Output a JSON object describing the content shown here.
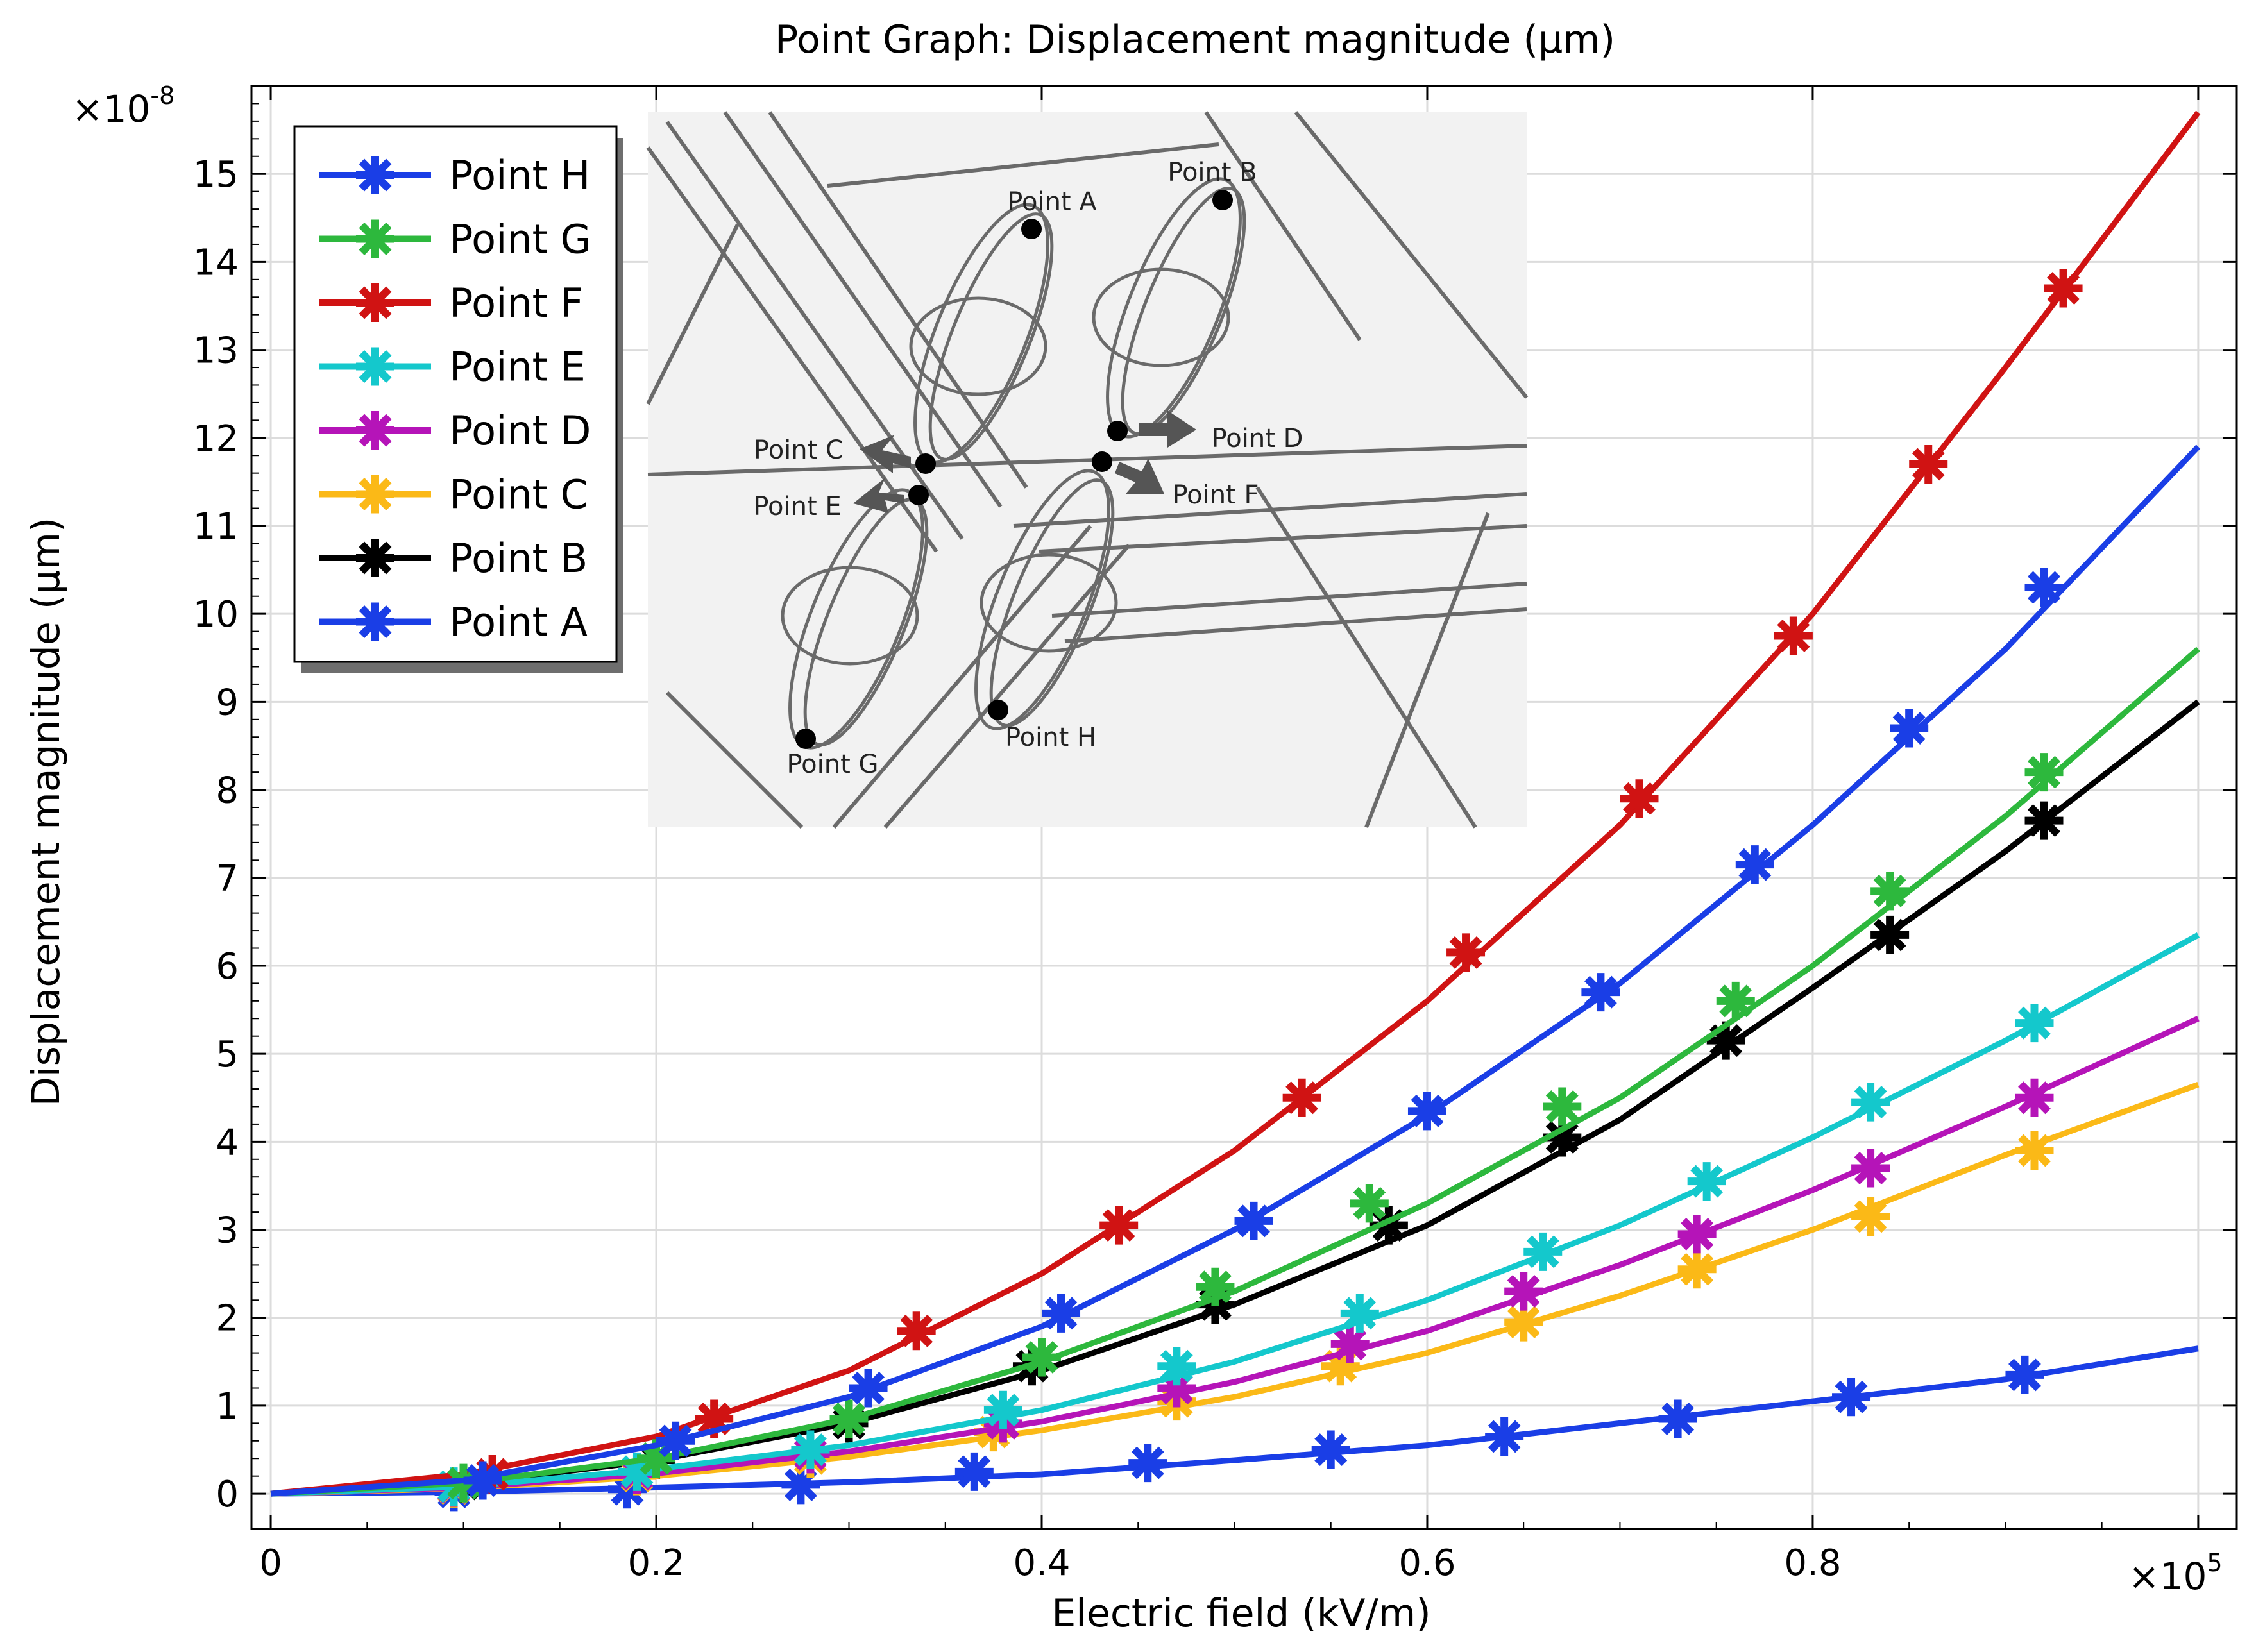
{
  "chart_data": {
    "type": "line",
    "title": "Point Graph: Displacement magnitude (µm)",
    "xlabel": "Electric field (kV/m)",
    "ylabel": "Displacement magnitude (µm)",
    "x_multiplier": "×10",
    "x_exponent": "5",
    "y_multiplier": "×10",
    "y_exponent": "-8",
    "xlim": [
      -0.01,
      1.02
    ],
    "ylim": [
      -0.4,
      16.0
    ],
    "xticks": [
      0,
      0.2,
      0.4,
      0.6,
      0.8
    ],
    "xtick_labels": [
      "0",
      "0.2",
      "0.4",
      "0.6",
      "0.8"
    ],
    "yticks": [
      0,
      1,
      2,
      3,
      4,
      5,
      6,
      7,
      8,
      9,
      10,
      11,
      12,
      13,
      14,
      15
    ],
    "ytick_labels": [
      "0",
      "1",
      "2",
      "3",
      "4",
      "5",
      "6",
      "7",
      "8",
      "9",
      "10",
      "11",
      "12",
      "13",
      "14",
      "15"
    ],
    "grid": true,
    "legend_position": "top-left",
    "x": [
      0,
      0.1,
      0.2,
      0.3,
      0.4,
      0.5,
      0.6,
      0.7,
      0.8,
      0.9,
      1.0
    ],
    "series": [
      {
        "name": "Point H",
        "color": "#1a3ee6",
        "values": [
          0,
          0.15,
          0.55,
          1.1,
          1.9,
          3.0,
          4.3,
          5.8,
          7.6,
          9.6,
          11.9
        ],
        "markers": [
          [
            0.11,
            0.15
          ],
          [
            0.21,
            0.6
          ],
          [
            0.31,
            1.2
          ],
          [
            0.41,
            2.05
          ],
          [
            0.51,
            3.1
          ],
          [
            0.6,
            4.35
          ],
          [
            0.69,
            5.7
          ],
          [
            0.77,
            7.15
          ],
          [
            0.85,
            8.7
          ],
          [
            0.92,
            10.3
          ]
        ]
      },
      {
        "name": "Point G",
        "color": "#2db83d",
        "values": [
          0,
          0.12,
          0.4,
          0.85,
          1.5,
          2.3,
          3.3,
          4.5,
          6.0,
          7.7,
          9.6
        ],
        "markers": [
          [
            0.1,
            0.12
          ],
          [
            0.2,
            0.4
          ],
          [
            0.3,
            0.85
          ],
          [
            0.4,
            1.55
          ],
          [
            0.49,
            2.35
          ],
          [
            0.57,
            3.3
          ],
          [
            0.67,
            4.4
          ],
          [
            0.76,
            5.6
          ],
          [
            0.84,
            6.85
          ],
          [
            0.92,
            8.2
          ]
        ]
      },
      {
        "name": "Point F",
        "color": "#d01313",
        "values": [
          0,
          0.22,
          0.65,
          1.4,
          2.5,
          3.9,
          5.6,
          7.6,
          10.0,
          12.8,
          15.7
        ],
        "markers": [
          [
            0.115,
            0.22
          ],
          [
            0.23,
            0.85
          ],
          [
            0.335,
            1.85
          ],
          [
            0.44,
            3.05
          ],
          [
            0.535,
            4.5
          ],
          [
            0.62,
            6.15
          ],
          [
            0.71,
            7.9
          ],
          [
            0.79,
            9.75
          ],
          [
            0.86,
            11.7
          ],
          [
            0.93,
            13.7
          ]
        ]
      },
      {
        "name": "Point E",
        "color": "#14c8cc",
        "values": [
          0,
          0.08,
          0.28,
          0.55,
          0.95,
          1.5,
          2.2,
          3.05,
          4.05,
          5.15,
          6.35
        ],
        "markers": [
          [
            0.095,
            0.08
          ],
          [
            0.19,
            0.25
          ],
          [
            0.28,
            0.5
          ],
          [
            0.38,
            0.95
          ],
          [
            0.47,
            1.45
          ],
          [
            0.565,
            2.05
          ],
          [
            0.66,
            2.75
          ],
          [
            0.745,
            3.55
          ],
          [
            0.83,
            4.45
          ],
          [
            0.915,
            5.35
          ]
        ]
      },
      {
        "name": "Point D",
        "color": "#b514b8",
        "values": [
          0,
          0.07,
          0.23,
          0.48,
          0.82,
          1.27,
          1.85,
          2.6,
          3.45,
          4.4,
          5.4
        ],
        "markers": [
          [
            0.095,
            0.07
          ],
          [
            0.19,
            0.22
          ],
          [
            0.28,
            0.45
          ],
          [
            0.38,
            0.8
          ],
          [
            0.47,
            1.2
          ],
          [
            0.56,
            1.7
          ],
          [
            0.65,
            2.3
          ],
          [
            0.74,
            2.95
          ],
          [
            0.83,
            3.7
          ],
          [
            0.915,
            4.5
          ]
        ]
      },
      {
        "name": "Point C",
        "color": "#fbb917",
        "values": [
          0,
          0.06,
          0.2,
          0.42,
          0.72,
          1.1,
          1.6,
          2.25,
          3.0,
          3.85,
          4.65
        ],
        "markers": [
          [
            0.095,
            0.06
          ],
          [
            0.19,
            0.2
          ],
          [
            0.28,
            0.4
          ],
          [
            0.375,
            0.7
          ],
          [
            0.47,
            1.05
          ],
          [
            0.555,
            1.45
          ],
          [
            0.65,
            1.95
          ],
          [
            0.74,
            2.55
          ],
          [
            0.83,
            3.15
          ],
          [
            0.915,
            3.9
          ]
        ]
      },
      {
        "name": "Point B",
        "color": "#000000",
        "values": [
          0,
          0.11,
          0.38,
          0.8,
          1.4,
          2.15,
          3.05,
          4.25,
          5.75,
          7.3,
          9.0
        ],
        "markers": [
          [
            0.1,
            0.11
          ],
          [
            0.2,
            0.38
          ],
          [
            0.3,
            0.8
          ],
          [
            0.395,
            1.45
          ],
          [
            0.49,
            2.15
          ],
          [
            0.58,
            3.05
          ],
          [
            0.67,
            4.05
          ],
          [
            0.755,
            5.15
          ],
          [
            0.84,
            6.35
          ],
          [
            0.92,
            7.65
          ]
        ]
      },
      {
        "name": "Point A",
        "color": "#1a3ee6",
        "values": [
          0,
          0.02,
          0.07,
          0.13,
          0.22,
          0.38,
          0.55,
          0.8,
          1.05,
          1.3,
          1.65
        ],
        "markers": [
          [
            0.095,
            0.02
          ],
          [
            0.185,
            0.05
          ],
          [
            0.275,
            0.1
          ],
          [
            0.365,
            0.25
          ],
          [
            0.455,
            0.35
          ],
          [
            0.55,
            0.5
          ],
          [
            0.64,
            0.65
          ],
          [
            0.73,
            0.85
          ],
          [
            0.82,
            1.1
          ],
          [
            0.91,
            1.35
          ]
        ]
      }
    ],
    "inset_labels": [
      "Point A",
      "Point B",
      "Point C",
      "Point D",
      "Point E",
      "Point F",
      "Point G",
      "Point H"
    ]
  }
}
